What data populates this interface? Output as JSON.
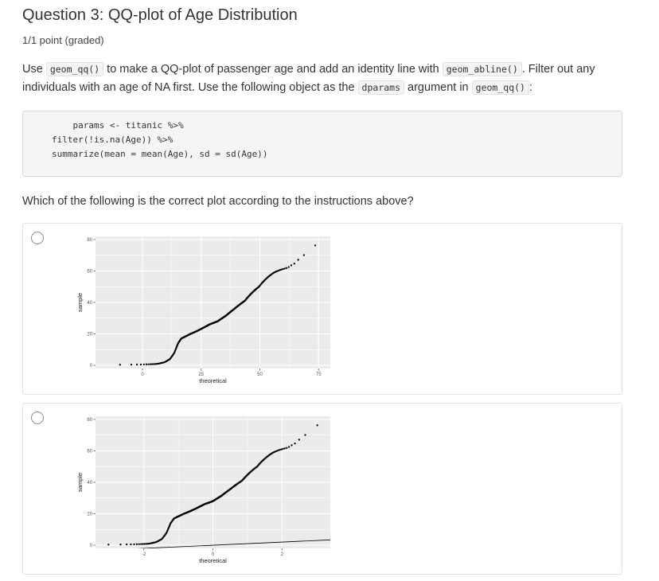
{
  "question": {
    "title": "Question 3: QQ-plot of Age Distribution",
    "points": "1/1 point (graded)",
    "text_parts": {
      "t1": "Use ",
      "c1": "geom_qq()",
      "t2": " to make a QQ-plot of passenger age and add an identity line with ",
      "c2": "geom_abline()",
      "t3": ". Filter out any individuals with an age of NA first. Use the following object as the ",
      "c3": "dparams",
      "t4": " argument in ",
      "c4": "geom_qq()",
      "t5": ":"
    },
    "code_lines": [
      "    params <- titanic %>%",
      "filter(!is.na(Age)) %>%",
      "summarize(mean = mean(Age), sd = sd(Age))"
    ],
    "prompt": "Which of the following is the correct plot according to the instructions above?"
  },
  "chart_data": [
    {
      "type": "scatter",
      "xlabel": "theoretical",
      "ylabel": "sample",
      "x_ticks": [
        "0",
        "25",
        "50",
        "75"
      ],
      "y_ticks": [
        "0",
        "20",
        "40",
        "60",
        "80"
      ],
      "xlim": [
        -20,
        80
      ],
      "ylim": [
        -2,
        82
      ],
      "grid": true,
      "identity_line": false,
      "theoretical_range": [
        -12,
        76
      ],
      "sample_range": [
        0.4,
        80
      ]
    },
    {
      "type": "scatter",
      "xlabel": "theoretical",
      "ylabel": "sample",
      "x_ticks": [
        "-2",
        "0",
        "2"
      ],
      "y_ticks": [
        "0",
        "20",
        "40",
        "60",
        "80"
      ],
      "xlim": [
        -3.4,
        3.4
      ],
      "ylim": [
        -2,
        82
      ],
      "grid": true,
      "identity_line": true,
      "theoretical_range": [
        -3.2,
        3.2
      ],
      "sample_range": [
        0.4,
        80
      ]
    }
  ],
  "colors": {
    "panel_bg": "#ebebeb",
    "grid": "#ffffff",
    "points": "#000000",
    "radio_border": "#8a8a8a"
  }
}
